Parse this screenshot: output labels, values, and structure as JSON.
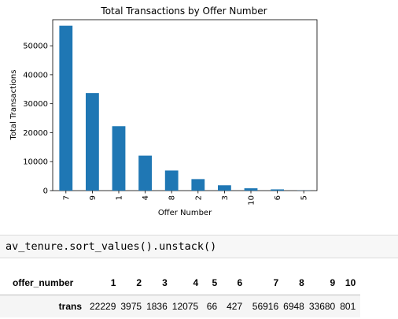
{
  "chart_data": {
    "type": "bar",
    "title": "Total Transactions by Offer Number",
    "xlabel": "Offer Number",
    "ylabel": "Total Transactions",
    "categories": [
      "7",
      "9",
      "1",
      "4",
      "8",
      "2",
      "3",
      "10",
      "6",
      "5"
    ],
    "values": [
      56916,
      33680,
      22229,
      12075,
      6948,
      3975,
      1836,
      801,
      427,
      66
    ],
    "ylim": [
      0,
      59000
    ],
    "yticks": [
      0,
      10000,
      20000,
      30000,
      40000,
      50000
    ],
    "grid": false,
    "color": "#1f77b4"
  },
  "code_cell": {
    "source": "av_tenure.sort_values().unstack()"
  },
  "table": {
    "index_label": "offer_number",
    "columns": [
      "1",
      "2",
      "3",
      "4",
      "5",
      "6",
      "7",
      "8",
      "9",
      "10"
    ],
    "row_label": "trans",
    "row_values": [
      "22229",
      "3975",
      "1836",
      "12075",
      "66",
      "427",
      "56916",
      "6948",
      "33680",
      "801"
    ]
  }
}
